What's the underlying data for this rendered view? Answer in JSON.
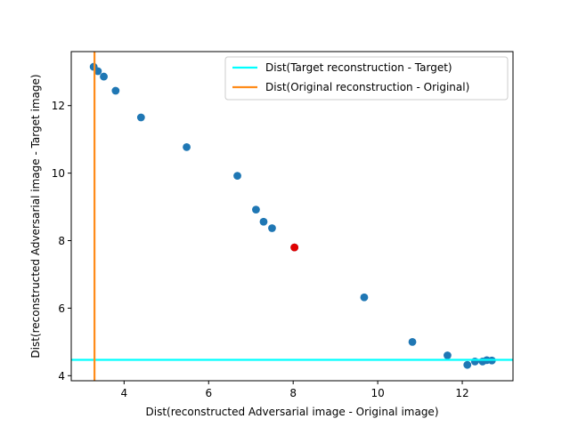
{
  "chart_data": {
    "type": "scatter",
    "title": "",
    "xlabel": "Dist(reconstructed Adversarial image - Original image)",
    "ylabel": "Dist(reconstructed Adversarial image - Target image)",
    "xlim": [
      2.75,
      13.2
    ],
    "ylim": [
      3.85,
      13.6
    ],
    "xticks": [
      4,
      6,
      8,
      10,
      12
    ],
    "yticks": [
      4,
      6,
      8,
      10,
      12
    ],
    "grid": false,
    "legend_position": "top-right",
    "points_color": "#1f77b4",
    "points": [
      {
        "x": 3.28,
        "y": 13.15
      },
      {
        "x": 3.38,
        "y": 13.02
      },
      {
        "x": 3.52,
        "y": 12.86
      },
      {
        "x": 3.8,
        "y": 12.44
      },
      {
        "x": 4.4,
        "y": 11.65
      },
      {
        "x": 5.48,
        "y": 10.77
      },
      {
        "x": 6.68,
        "y": 9.92
      },
      {
        "x": 7.12,
        "y": 8.92
      },
      {
        "x": 7.3,
        "y": 8.56
      },
      {
        "x": 7.5,
        "y": 8.37
      },
      {
        "x": 8.03,
        "y": 7.8
      },
      {
        "x": 9.68,
        "y": 6.32
      },
      {
        "x": 10.82,
        "y": 5.0
      },
      {
        "x": 11.65,
        "y": 4.6
      },
      {
        "x": 12.12,
        "y": 4.32
      },
      {
        "x": 12.3,
        "y": 4.42
      },
      {
        "x": 12.48,
        "y": 4.42
      },
      {
        "x": 12.58,
        "y": 4.46
      },
      {
        "x": 12.7,
        "y": 4.45
      }
    ],
    "highlight_point": {
      "x": 8.03,
      "y": 7.8,
      "color": "#e00000"
    },
    "reference_lines": [
      {
        "name": "Dist(Target reconstruction - Target)",
        "orientation": "horizontal",
        "value": 4.47,
        "color": "#00ffff"
      },
      {
        "name": "Dist(Original reconstruction - Original)",
        "orientation": "vertical",
        "value": 3.3,
        "color": "#ff8c1a"
      }
    ]
  }
}
